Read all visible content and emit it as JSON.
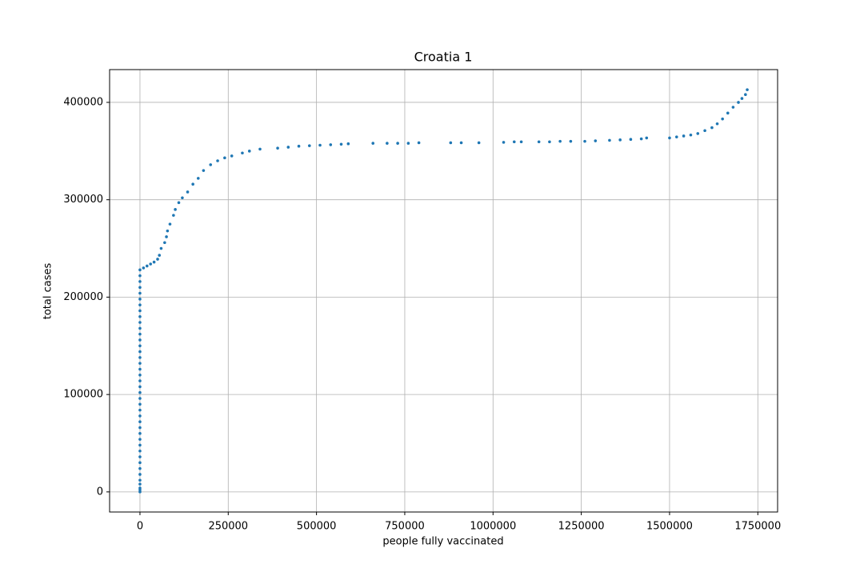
{
  "chart_data": {
    "type": "scatter",
    "title": "Croatia 1",
    "x_label": "people fully vaccinated",
    "y_label": "total cases",
    "color": "#1f77b4",
    "grid": true,
    "xlim": [
      -86000,
      1806000
    ],
    "ylim": [
      -20650,
      433650
    ],
    "xticks": [
      0,
      250000,
      500000,
      750000,
      1000000,
      1250000,
      1500000,
      1750000
    ],
    "yticks": [
      0,
      100000,
      200000,
      300000,
      400000
    ],
    "x": [
      0,
      0,
      0,
      0,
      0,
      0,
      0,
      0,
      0,
      0,
      0,
      0,
      0,
      0,
      0,
      0,
      0,
      0,
      0,
      0,
      0,
      0,
      0,
      0,
      0,
      0,
      0,
      0,
      0,
      0,
      0,
      0,
      0,
      0,
      0,
      0,
      0,
      0,
      0,
      0,
      0,
      10000,
      20000,
      30000,
      40000,
      50000,
      55000,
      60000,
      70000,
      75000,
      78000,
      85000,
      95000,
      100000,
      110000,
      120000,
      135000,
      150000,
      165000,
      180000,
      200000,
      220000,
      240000,
      260000,
      290000,
      310000,
      340000,
      390000,
      420000,
      450000,
      480000,
      510000,
      540000,
      570000,
      590000,
      660000,
      700000,
      730000,
      760000,
      790000,
      880000,
      910000,
      960000,
      1030000,
      1060000,
      1080000,
      1130000,
      1160000,
      1190000,
      1220000,
      1260000,
      1290000,
      1330000,
      1360000,
      1390000,
      1420000,
      1435000,
      1500000,
      1520000,
      1540000,
      1560000,
      1580000,
      1600000,
      1620000,
      1635000,
      1650000,
      1665000,
      1680000,
      1695000,
      1705000,
      1715000,
      1720000
    ],
    "y": [
      0,
      2000,
      4000,
      8000,
      12000,
      18000,
      24000,
      30000,
      36000,
      42000,
      48000,
      54000,
      60000,
      66000,
      72000,
      78000,
      84000,
      90000,
      96000,
      102000,
      108000,
      114000,
      120000,
      126000,
      132000,
      138000,
      144000,
      150000,
      156000,
      162000,
      168000,
      174000,
      180000,
      186000,
      192000,
      198000,
      204000,
      210000,
      216000,
      222000,
      228000,
      230000,
      232000,
      234000,
      236000,
      239000,
      243000,
      250000,
      256000,
      262000,
      268000,
      275000,
      284000,
      290000,
      297000,
      302000,
      308000,
      316000,
      322000,
      330000,
      336000,
      340000,
      343000,
      345000,
      348000,
      350000,
      352000,
      353000,
      354000,
      355000,
      355500,
      356000,
      356500,
      357000,
      357500,
      358000,
      358000,
      358000,
      358000,
      358500,
      358500,
      358500,
      358500,
      359000,
      359500,
      359500,
      359500,
      359500,
      360000,
      360000,
      360000,
      360500,
      361000,
      361500,
      362000,
      362500,
      363500,
      363500,
      364500,
      365500,
      366500,
      368000,
      371000,
      374000,
      378000,
      383000,
      389000,
      395000,
      400000,
      404000,
      408000,
      413000
    ]
  }
}
